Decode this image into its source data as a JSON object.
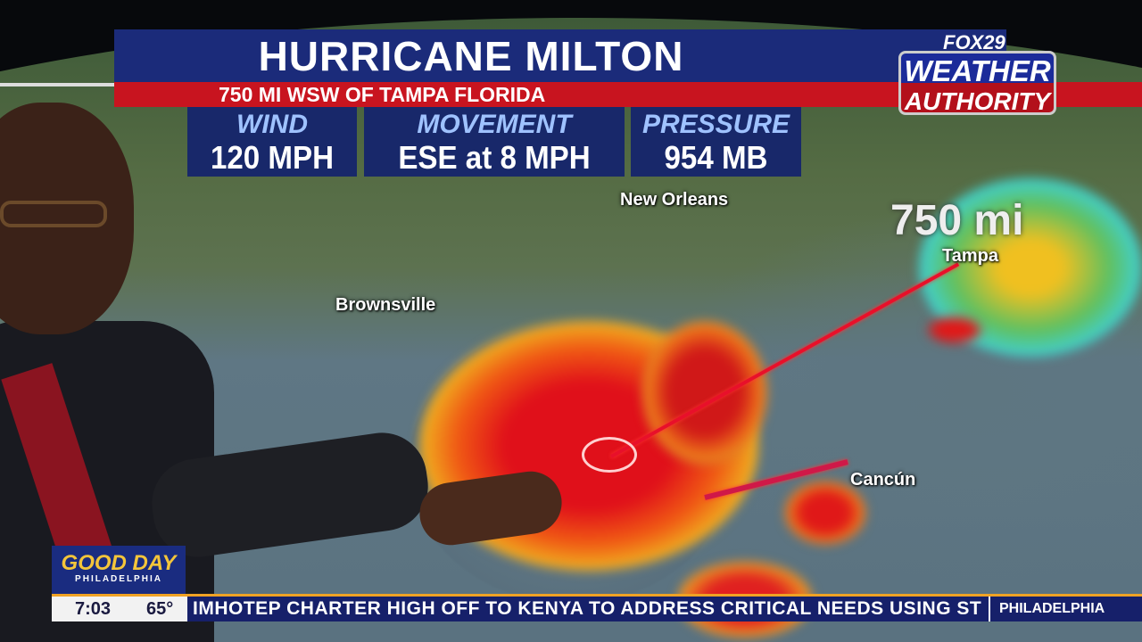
{
  "graphic": {
    "title": "HURRICANE MILTON",
    "subtitle": "750 MI WSW OF TAMPA FLORIDA",
    "stats": [
      {
        "label": "WIND",
        "value": "120 MPH"
      },
      {
        "label": "MOVEMENT",
        "value": "ESE at 8 MPH"
      },
      {
        "label": "PRESSURE",
        "value": "954 MB"
      }
    ]
  },
  "logo": {
    "station": "FOX29",
    "line1": "WEATHER",
    "line2": "AUTHORITY"
  },
  "map": {
    "cities": [
      "New Orleans",
      "Brownsville",
      "Tampa",
      "Cancún"
    ],
    "distance_label": "750 mi",
    "line_color": "#e8102a"
  },
  "show": {
    "name": "GOOD DAY",
    "city": "PHILADELPHIA"
  },
  "ticker": {
    "time": "7:03",
    "temp": "65°",
    "headline": "IMHOTEP CHARTER HIGH OFF TO KENYA TO ADDRESS CRITICAL NEEDS USING ST",
    "location": "PHILADELPHIA"
  }
}
